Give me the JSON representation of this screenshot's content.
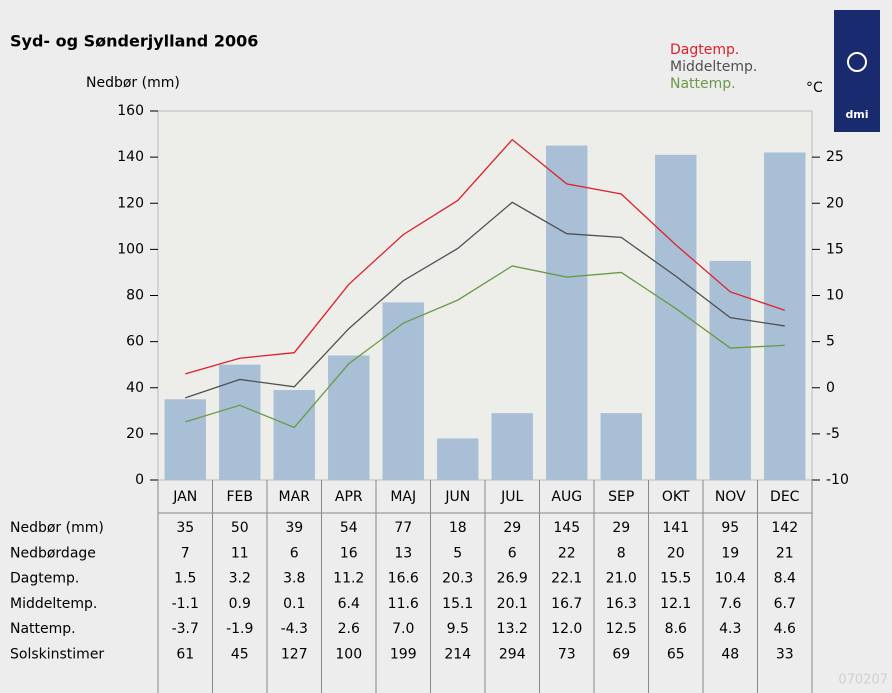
{
  "chart_data": {
    "type": "bar-line",
    "title": "Syd- og Sønderjylland 2006",
    "ylabel": "Nedbør (mm)",
    "y2label": "°C",
    "logo": "DMI",
    "code": "070207",
    "categories": [
      "JAN",
      "FEB",
      "MAR",
      "APR",
      "MAJ",
      "JUN",
      "JUL",
      "AUG",
      "SEP",
      "OKT",
      "NOV",
      "DEC"
    ],
    "ylim": [
      0,
      160
    ],
    "yticks": [
      0,
      20,
      40,
      60,
      80,
      100,
      120,
      140,
      160
    ],
    "y2lim": [
      -10,
      30
    ],
    "y2ticks": [
      -10,
      -5,
      0,
      5,
      10,
      15,
      20,
      25
    ],
    "series": [
      {
        "name": "Nedbør (mm)",
        "type": "bar",
        "color": "#a9bfd5",
        "values": [
          35,
          50,
          39,
          54,
          77,
          18,
          29,
          145,
          29,
          141,
          95,
          142
        ]
      },
      {
        "name": "Dagtemp.",
        "type": "line",
        "axis": "y2",
        "color": "#e0202a",
        "values": [
          1.5,
          3.2,
          3.8,
          11.2,
          16.6,
          20.3,
          26.9,
          22.1,
          21.0,
          15.5,
          10.4,
          8.4
        ],
        "value_labels": [
          "1.5",
          "3.2",
          "3.8",
          "11.2",
          "16.6",
          "20.3",
          "26.9",
          "22.1",
          "21.0",
          "15.5",
          "10.4",
          "8.4"
        ]
      },
      {
        "name": "Middeltemp.",
        "type": "line",
        "axis": "y2",
        "color": "#505050",
        "values": [
          -1.1,
          0.9,
          0.1,
          6.4,
          11.6,
          15.1,
          20.1,
          16.7,
          16.3,
          12.1,
          7.6,
          6.7
        ],
        "value_labels": [
          "-1.1",
          "0.9",
          "0.1",
          "6.4",
          "11.6",
          "15.1",
          "20.1",
          "16.7",
          "16.3",
          "12.1",
          "7.6",
          "6.7"
        ]
      },
      {
        "name": "Nattemp.",
        "type": "line",
        "axis": "y2",
        "color": "#6a9a48",
        "values": [
          -3.7,
          -1.9,
          -4.3,
          2.6,
          7.0,
          9.5,
          13.2,
          12.0,
          12.5,
          8.6,
          4.3,
          4.6
        ],
        "value_labels": [
          "-3.7",
          "-1.9",
          "-4.3",
          "2.6",
          "7.0",
          "9.5",
          "13.2",
          "12.0",
          "12.5",
          "8.6",
          "4.3",
          "4.6"
        ]
      }
    ],
    "table_rows": [
      {
        "name": "Nedbørdage",
        "values": [
          7,
          11,
          6,
          16,
          13,
          5,
          6,
          22,
          8,
          20,
          19,
          21
        ]
      },
      {
        "name": "Solskinstimer",
        "values": [
          61,
          45,
          127,
          100,
          199,
          214,
          294,
          73,
          69,
          65,
          48,
          33
        ]
      }
    ]
  }
}
